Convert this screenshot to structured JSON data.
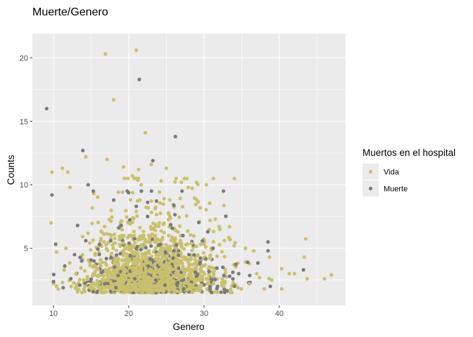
{
  "chart_data": {
    "type": "scatter",
    "title": "Muerte/Genero",
    "xlabel": "Genero",
    "ylabel": "Counts",
    "xlim": [
      7.2,
      48.8
    ],
    "ylim": [
      0.5,
      21.9
    ],
    "xticks": [
      10,
      20,
      30,
      40
    ],
    "yticks": [
      5,
      10,
      15,
      20
    ],
    "xticks_minor": [
      15,
      25,
      35,
      45
    ],
    "yticks_minor": [
      2.5,
      7.5,
      12.5,
      17.5
    ],
    "grid": true,
    "legend": {
      "title": "Muertos en el hospital",
      "position": "right",
      "entries": [
        "Vida",
        "Muerte"
      ]
    },
    "colors": {
      "Vida": "#c9c06f",
      "Muerte": "#7a7a7a",
      "panel": "#ebebeb",
      "grid": "#ffffff"
    },
    "series": [
      {
        "name": "Vida",
        "points": [
          [
            21.0,
            20.6
          ],
          [
            16.9,
            20.3
          ],
          [
            18.0,
            16.7
          ],
          [
            22.2,
            14.1
          ],
          [
            9.8,
            11.0
          ],
          [
            11.2,
            11.3
          ],
          [
            11.9,
            11.0
          ],
          [
            14.3,
            12.2
          ],
          [
            17.1,
            12.0
          ],
          [
            19.3,
            11.4
          ],
          [
            21.3,
            11.2
          ],
          [
            23.0,
            11.6
          ],
          [
            25.0,
            11.3
          ],
          [
            20.5,
            10.7
          ],
          [
            27.0,
            10.2
          ],
          [
            24.3,
            10.3
          ],
          [
            29.0,
            10.2
          ],
          [
            30.3,
            10.0
          ],
          [
            12.2,
            9.8
          ],
          [
            9.7,
            7.0
          ],
          [
            10.4,
            4.7
          ],
          [
            11.2,
            2.3
          ],
          [
            30.8,
            7.2
          ],
          [
            31.5,
            7.3
          ],
          [
            32.0,
            6.7
          ],
          [
            33.4,
            5.7
          ],
          [
            34.0,
            5.2
          ],
          [
            35.5,
            5.0
          ],
          [
            36.6,
            4.8
          ],
          [
            36.0,
            3.8
          ],
          [
            38.7,
            4.3
          ],
          [
            37.0,
            3.0
          ],
          [
            39.0,
            2.5
          ],
          [
            40.3,
            3.4
          ],
          [
            41.3,
            3.0
          ],
          [
            42.0,
            3.0
          ],
          [
            43.3,
            4.3
          ],
          [
            43.7,
            2.6
          ],
          [
            46.0,
            2.6
          ],
          [
            46.9,
            2.9
          ],
          [
            40.3,
            1.8
          ],
          [
            32.6,
            2.0
          ],
          [
            36.0,
            2.2
          ],
          [
            38.0,
            1.8
          ],
          [
            15.0,
            2.1
          ],
          [
            16.2,
            1.6
          ],
          [
            13.0,
            3.0
          ],
          [
            14.0,
            2.5
          ]
        ]
      },
      {
        "name": "Muerte",
        "points": [
          [
            9.1,
            16.0
          ],
          [
            21.4,
            18.3
          ],
          [
            26.2,
            13.8
          ],
          [
            13.9,
            12.7
          ],
          [
            23.2,
            11.9
          ],
          [
            9.8,
            9.2
          ],
          [
            14.6,
            10.0
          ],
          [
            15.3,
            9.5
          ],
          [
            18.0,
            8.8
          ],
          [
            19.8,
            9.5
          ],
          [
            21.0,
            8.3
          ],
          [
            22.5,
            7.5
          ],
          [
            13.2,
            6.8
          ],
          [
            12.8,
            4.5
          ],
          [
            11.5,
            3.6
          ],
          [
            12.3,
            2.6
          ],
          [
            13.5,
            2.1
          ],
          [
            16.8,
            2.2
          ],
          [
            18.3,
            1.9
          ],
          [
            24.8,
            2.1
          ],
          [
            26.5,
            2.3
          ],
          [
            27.3,
            1.8
          ],
          [
            28.0,
            4.5
          ],
          [
            29.5,
            3.9
          ],
          [
            30.5,
            6.3
          ],
          [
            31.2,
            5.0
          ],
          [
            32.5,
            3.5
          ],
          [
            33.4,
            2.8
          ],
          [
            38.5,
            5.5
          ],
          [
            38.5,
            4.8
          ],
          [
            43.2,
            3.3
          ],
          [
            38.8,
            2.0
          ],
          [
            35.8,
            3.9
          ],
          [
            34.6,
            3.0
          ],
          [
            31.8,
            2.0
          ],
          [
            26.0,
            4.8
          ],
          [
            24.2,
            5.3
          ],
          [
            22.6,
            3.6
          ],
          [
            20.2,
            4.4
          ],
          [
            17.6,
            5.6
          ],
          [
            16.4,
            3.1
          ],
          [
            15.4,
            4.0
          ],
          [
            14.3,
            5.6
          ],
          [
            19.0,
            6.8
          ],
          [
            27.2,
            6.0
          ],
          [
            29.0,
            2.8
          ],
          [
            20.8,
            2.6
          ],
          [
            23.6,
            2.5
          ]
        ]
      }
    ],
    "density_clusters": [
      {
        "series": "Vida",
        "seed": 11,
        "count": 1450,
        "x_mean": 23.2,
        "x_sd": 4.4,
        "y_min": 1.5,
        "y_decay": 1.85,
        "y_max": 10.5
      },
      {
        "series": "Muerte",
        "seed": 29,
        "count": 260,
        "x_mean": 23.0,
        "x_sd": 5.0,
        "y_min": 1.5,
        "y_decay": 1.6,
        "y_max": 9.5
      },
      {
        "series": "Vida",
        "seed": 53,
        "count": 420,
        "x_mean": 22.5,
        "x_sd": 3.6,
        "y_min": 1.6,
        "y_decay": 1.2,
        "y_max": 6.0
      }
    ]
  }
}
